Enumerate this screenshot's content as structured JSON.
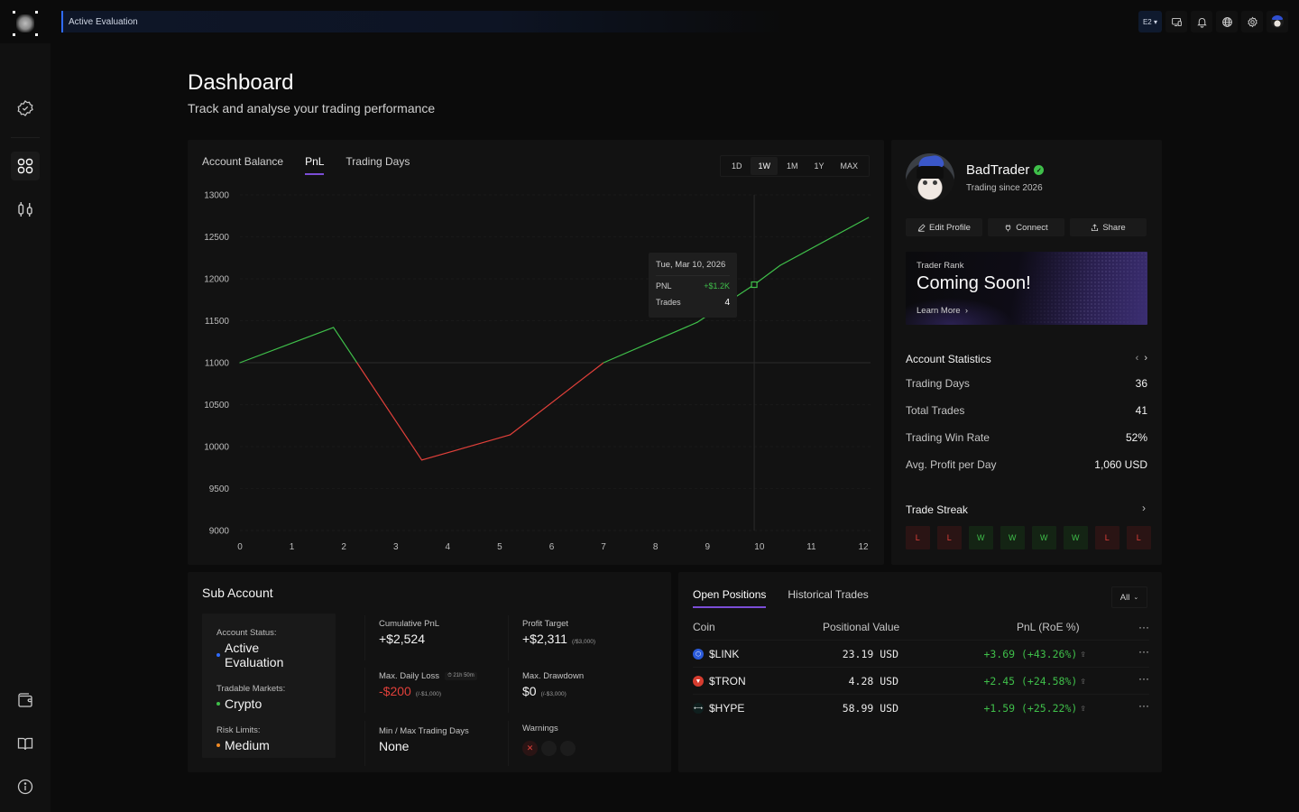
{
  "topbar": {
    "status_label": "Active Evaluation",
    "env_label": "E2",
    "icons": [
      "devices-icon",
      "bell-icon",
      "globe-icon",
      "gear-icon",
      "avatar"
    ]
  },
  "sidebar": {
    "items": [
      {
        "name": "verified-badge-icon",
        "active": false
      },
      {
        "name": "dashboard-grid-icon",
        "active": true
      },
      {
        "name": "candlestick-icon",
        "active": false
      },
      {
        "name": "wallet-icon",
        "active": false
      },
      {
        "name": "book-icon",
        "active": false
      },
      {
        "name": "info-icon",
        "active": false
      }
    ]
  },
  "header": {
    "title": "Dashboard",
    "subtitle": "Track and analyse your trading performance"
  },
  "chart_panel": {
    "tabs": [
      {
        "label": "Account Balance",
        "active": false
      },
      {
        "label": "PnL",
        "active": true
      },
      {
        "label": "Trading Days",
        "active": false
      }
    ],
    "ranges": [
      {
        "label": "1D",
        "active": false
      },
      {
        "label": "1W",
        "active": true
      },
      {
        "label": "1M",
        "active": false
      },
      {
        "label": "1Y",
        "active": false
      },
      {
        "label": "MAX",
        "active": false
      }
    ],
    "tooltip": {
      "date": "Tue, Mar 10, 2026",
      "pnl_label": "PNL",
      "pnl_value": "+$1.2K",
      "trades_label": "Trades",
      "trades_value": "4"
    }
  },
  "chart_data": {
    "type": "line",
    "title": "",
    "xlabel": "",
    "ylabel": "",
    "baseline": 11000,
    "xlim": [
      0,
      12
    ],
    "ylim": [
      9000,
      13000
    ],
    "xticks": [
      "0",
      "1",
      "2",
      "3",
      "4",
      "5",
      "6",
      "7",
      "8",
      "9",
      "10",
      "11",
      "12"
    ],
    "yticks": [
      "13000",
      "12500",
      "12000",
      "11500",
      "11000",
      "10500",
      "10000",
      "9500",
      "9000"
    ],
    "grid": true,
    "colors": {
      "above": "#3fbf4a",
      "below": "#e0403a"
    },
    "series": [
      {
        "name": "PnL",
        "x": [
          0,
          1.8,
          3.5,
          5.2,
          7.0,
          8.8,
          9.9,
          10.4,
          12.1
        ],
        "y": [
          11000,
          11420,
          9840,
          10140,
          11000,
          11480,
          11930,
          12160,
          12730
        ]
      }
    ],
    "hover": {
      "x": 9.9,
      "y": 11930
    }
  },
  "profile": {
    "username": "BadTrader",
    "verified": true,
    "since": "Trading since 2026",
    "actions": [
      {
        "label": "Edit Profile",
        "icon": "pencil-icon"
      },
      {
        "label": "Connect",
        "icon": "plug-icon"
      },
      {
        "label": "Share",
        "icon": "share-icon"
      }
    ],
    "rank": {
      "label": "Trader Rank",
      "title": "Coming Soon!",
      "link": "Learn More",
      "link_chevron": "›"
    },
    "stats_title": "Account Statistics",
    "stats_nav": [
      "‹",
      "›"
    ],
    "stats": [
      {
        "label": "Trading Days",
        "value": "36"
      },
      {
        "label": "Total Trades",
        "value": "41"
      },
      {
        "label": "Trading Win Rate",
        "value": "52%"
      },
      {
        "label": "Avg. Profit per Day",
        "value": "1,060 USD"
      }
    ],
    "streak_title": "Trade Streak",
    "streak_chevron": "›",
    "streak": [
      "L",
      "L",
      "W",
      "W",
      "W",
      "W",
      "L",
      "L"
    ]
  },
  "sub_account": {
    "title": "Sub Account",
    "status_items": [
      {
        "label": "Account Status:",
        "value": "Active Evaluation",
        "color": "#2f6bff"
      },
      {
        "label": "Tradable Markets:",
        "value": "Crypto",
        "color": "#3fbf4a"
      },
      {
        "label": "Risk Limits:",
        "value": "Medium",
        "color": "#f08a24"
      }
    ],
    "metrics": {
      "cumulative_pnl": {
        "label": "Cumulative PnL",
        "value": "+$2,524"
      },
      "profit_target": {
        "label": "Profit Target",
        "value": "+$2,311",
        "limit": "(/$3,000)"
      },
      "max_daily_loss": {
        "label": "Max. Daily Loss",
        "timer": "⏱ 21h 50m",
        "value": "-$200",
        "limit": "(/-$1,000)"
      },
      "max_drawdown": {
        "label": "Max. Drawdown",
        "value": "$0",
        "limit": "(/-$3,000)"
      },
      "trading_days": {
        "label": "Min / Max Trading Days",
        "value": "None"
      },
      "warnings": {
        "label": "Warnings",
        "active_icon": "✕",
        "count_active": 1,
        "count_total": 3
      }
    }
  },
  "positions": {
    "tabs": [
      {
        "label": "Open Positions",
        "active": true
      },
      {
        "label": "Historical Trades",
        "active": false
      }
    ],
    "filter": {
      "value": "All"
    },
    "columns": {
      "coin": "Coin",
      "value": "Positional Value",
      "pnl": "PnL (RoE %)",
      "more": "···"
    },
    "rows": [
      {
        "coin": "$LINK",
        "icon_color": "#2a5ada",
        "icon_glyph": "⬡",
        "value": "23.19 USD",
        "pnl": "+3.69 (+43.26%)"
      },
      {
        "coin": "$TRON",
        "icon_color": "#d63c2f",
        "icon_glyph": "▼",
        "value": "4.28 USD",
        "pnl": "+2.45 (+24.58%)"
      },
      {
        "coin": "$HYPE",
        "icon_color": "#0f1f1e",
        "icon_glyph": "⟷",
        "value": "58.99 USD",
        "pnl": "+1.59 (+25.22%)"
      }
    ],
    "row_more": "···",
    "share_glyph": "⇪"
  }
}
